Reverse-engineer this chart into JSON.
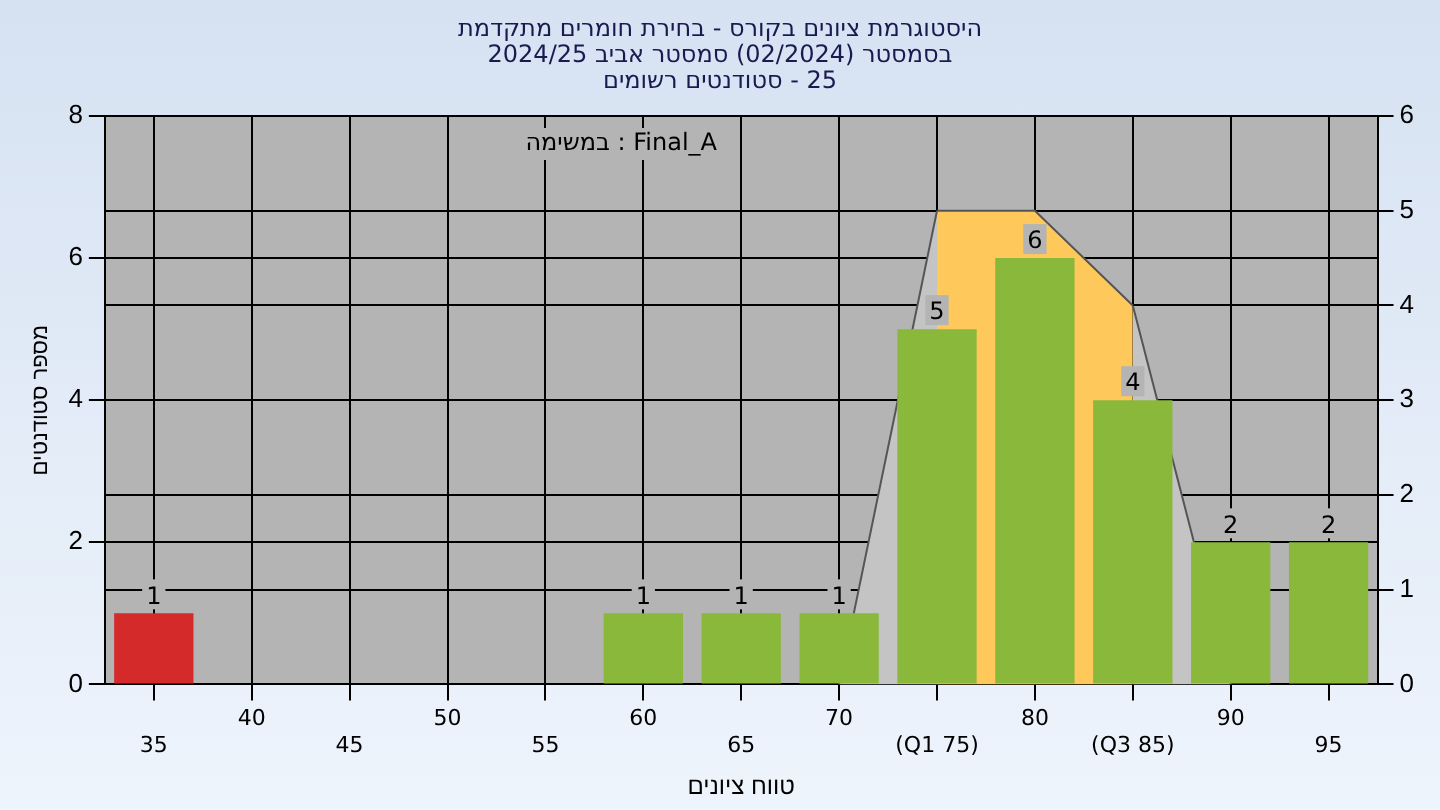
{
  "chart_data": {
    "type": "bar",
    "title": "היסטוגרמת ציונים בקורס - בחירת חומרים מתקדמת",
    "subtitle": "בסמסטר  (02/2024)  סמסטר אביב 2024/25\n25 - סטודנטים רשומים",
    "xlabel": "טווח ציונים",
    "ylabel": "מספר סטודנטים",
    "annotations": [
      "במשימה : Final_A"
    ],
    "categories": [
      "35",
      "40",
      "45",
      "50",
      "55",
      "60",
      "65",
      "70",
      "(Q1 75)",
      "80",
      "(Q3 85)",
      "90",
      "95"
    ],
    "series": [
      {
        "colors": [
          "#d42a2a",
          "#8ab83a",
          "#8ab83a",
          "#8ab83a",
          "#8ab83a",
          "#8ab83a",
          "#8ab83a",
          "#8ab83a",
          "#8ab83a",
          "#8ab83a",
          "#8ab83a",
          "#8ab83a",
          "#8ab83a"
        ],
        "values": [
          1,
          0,
          0,
          0,
          0,
          1,
          1,
          1,
          5,
          6,
          4,
          2,
          2
        ],
        "value_labels": [
          "1",
          null,
          null,
          null,
          null,
          "1",
          "1",
          "1",
          "5",
          "6",
          "4",
          "2",
          "2"
        ]
      },
      {
        "type": "area",
        "axis": "y2",
        "color": "#c4c4c4",
        "values": [
          null,
          null,
          null,
          null,
          null,
          null,
          null,
          0,
          5,
          null,
          4,
          0,
          null
        ]
      },
      {
        "type": "area",
        "axis": "y2",
        "color": "#ffc85a",
        "values": [
          null,
          null,
          null,
          null,
          null,
          null,
          null,
          null,
          5,
          5,
          4,
          null,
          null
        ]
      }
    ],
    "ylim": [
      0,
      8
    ],
    "yticks": [
      0,
      2,
      4,
      6,
      8
    ],
    "y2lim": [
      0,
      6
    ],
    "y2ticks": [
      0,
      1,
      2,
      3,
      4,
      5,
      6
    ],
    "grid": true,
    "legend": false
  }
}
